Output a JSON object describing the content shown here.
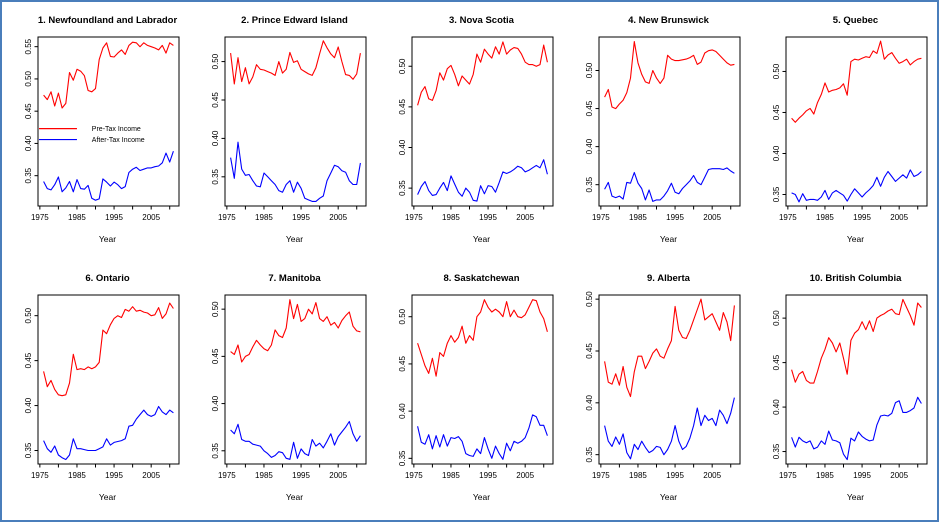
{
  "page": {
    "border_color": "#4a7ebb",
    "background_color": "#ffffff"
  },
  "x_axis": {
    "label": "Year",
    "years": [
      1976,
      1977,
      1978,
      1979,
      1980,
      1981,
      1982,
      1983,
      1984,
      1985,
      1986,
      1987,
      1988,
      1989,
      1990,
      1991,
      1992,
      1993,
      1994,
      1995,
      1996,
      1997,
      1998,
      1999,
      2000,
      2001,
      2002,
      2003,
      2004,
      2005,
      2006,
      2007,
      2008,
      2009,
      2010,
      2011
    ],
    "xlim": [
      1974.5,
      2012.5
    ],
    "ticks": [
      1975,
      1980,
      1985,
      1990,
      1995,
      2000,
      2005,
      2010
    ],
    "tick_labels": [
      1975,
      1985,
      1995,
      2005
    ]
  },
  "chart_data": [
    {
      "type": "line",
      "title": "1. Newfoundland and Labrador",
      "xlabel": "Year",
      "ylim": [
        0.303,
        0.565
      ],
      "y_ticks": [
        0.35,
        0.4,
        0.45,
        0.5,
        0.55
      ],
      "grid": false,
      "legend": {
        "entries": [
          {
            "label": "Pre-Tax Income",
            "color": "#ff0000",
            "y": 0.423
          },
          {
            "label": "After-Tax Income",
            "color": "#0000ff",
            "y": 0.406
          }
        ]
      },
      "series": [
        {
          "name": "Pre-Tax Income",
          "color": "#ff0000",
          "values": [
            0.475,
            0.468,
            0.48,
            0.458,
            0.478,
            0.455,
            0.462,
            0.51,
            0.498,
            0.515,
            0.512,
            0.505,
            0.482,
            0.48,
            0.485,
            0.53,
            0.548,
            0.556,
            0.535,
            0.534,
            0.54,
            0.545,
            0.538,
            0.552,
            0.557,
            0.556,
            0.55,
            0.556,
            0.552,
            0.55,
            0.548,
            0.545,
            0.552,
            0.54,
            0.556,
            0.552
          ]
        },
        {
          "name": "After-Tax Income",
          "color": "#0000ff",
          "values": [
            0.341,
            0.33,
            0.328,
            0.336,
            0.348,
            0.325,
            0.331,
            0.341,
            0.325,
            0.344,
            0.33,
            0.329,
            0.335,
            0.315,
            0.312,
            0.314,
            0.345,
            0.34,
            0.334,
            0.34,
            0.336,
            0.33,
            0.333,
            0.355,
            0.36,
            0.363,
            0.358,
            0.36,
            0.362,
            0.362,
            0.364,
            0.365,
            0.37,
            0.385,
            0.371,
            0.388
          ]
        }
      ]
    },
    {
      "type": "line",
      "title": "2. Prince Edward Island",
      "xlabel": "Year",
      "ylim": [
        0.312,
        0.532
      ],
      "y_ticks": [
        0.35,
        0.4,
        0.45,
        0.5
      ],
      "grid": false,
      "series": [
        {
          "name": "Pre-Tax Income",
          "color": "#ff0000",
          "values": [
            0.511,
            0.471,
            0.505,
            0.474,
            0.492,
            0.471,
            0.48,
            0.496,
            0.49,
            0.489,
            0.487,
            0.485,
            0.482,
            0.5,
            0.485,
            0.49,
            0.512,
            0.499,
            0.501,
            0.49,
            0.487,
            0.484,
            0.482,
            0.492,
            0.51,
            0.527,
            0.518,
            0.51,
            0.505,
            0.519,
            0.5,
            0.483,
            0.482,
            0.477,
            0.484,
            0.511
          ]
        },
        {
          "name": "After-Tax Income",
          "color": "#0000ff",
          "values": [
            0.375,
            0.348,
            0.395,
            0.36,
            0.352,
            0.353,
            0.345,
            0.338,
            0.337,
            0.355,
            0.35,
            0.345,
            0.34,
            0.332,
            0.33,
            0.34,
            0.345,
            0.33,
            0.343,
            0.335,
            0.322,
            0.32,
            0.318,
            0.318,
            0.322,
            0.325,
            0.345,
            0.355,
            0.365,
            0.363,
            0.358,
            0.356,
            0.345,
            0.34,
            0.34,
            0.368
          ]
        }
      ]
    },
    {
      "type": "line",
      "title": "3. Nova Scotia",
      "xlabel": "Year",
      "ylim": [
        0.328,
        0.536
      ],
      "y_ticks": [
        0.35,
        0.4,
        0.45,
        0.5
      ],
      "grid": false,
      "series": [
        {
          "name": "Pre-Tax Income",
          "color": "#ff0000",
          "values": [
            0.452,
            0.468,
            0.475,
            0.46,
            0.458,
            0.47,
            0.492,
            0.483,
            0.497,
            0.501,
            0.49,
            0.476,
            0.488,
            0.483,
            0.478,
            0.49,
            0.515,
            0.505,
            0.521,
            0.515,
            0.51,
            0.524,
            0.515,
            0.53,
            0.515,
            0.52,
            0.523,
            0.522,
            0.515,
            0.505,
            0.502,
            0.502,
            0.5,
            0.502,
            0.526,
            0.505
          ]
        },
        {
          "name": "After-Tax Income",
          "color": "#0000ff",
          "values": [
            0.342,
            0.352,
            0.358,
            0.347,
            0.341,
            0.342,
            0.35,
            0.357,
            0.347,
            0.365,
            0.355,
            0.345,
            0.34,
            0.35,
            0.345,
            0.335,
            0.334,
            0.353,
            0.343,
            0.353,
            0.352,
            0.345,
            0.357,
            0.37,
            0.368,
            0.37,
            0.373,
            0.377,
            0.375,
            0.37,
            0.372,
            0.375,
            0.378,
            0.375,
            0.385,
            0.367
          ]
        }
      ]
    },
    {
      "type": "line",
      "title": "4. New Brunswick",
      "xlabel": "Year",
      "ylim": [
        0.322,
        0.544
      ],
      "y_ticks": [
        0.35,
        0.4,
        0.45,
        0.5
      ],
      "grid": false,
      "series": [
        {
          "name": "Pre-Tax Income",
          "color": "#ff0000",
          "values": [
            0.465,
            0.475,
            0.452,
            0.45,
            0.456,
            0.461,
            0.471,
            0.49,
            0.538,
            0.51,
            0.495,
            0.485,
            0.483,
            0.5,
            0.49,
            0.483,
            0.49,
            0.52,
            0.515,
            0.513,
            0.513,
            0.514,
            0.515,
            0.517,
            0.52,
            0.508,
            0.511,
            0.523,
            0.526,
            0.527,
            0.525,
            0.52,
            0.515,
            0.51,
            0.507,
            0.508
          ]
        },
        {
          "name": "After-Tax Income",
          "color": "#0000ff",
          "values": [
            0.344,
            0.353,
            0.335,
            0.333,
            0.335,
            0.331,
            0.353,
            0.352,
            0.366,
            0.352,
            0.345,
            0.33,
            0.343,
            0.328,
            0.33,
            0.33,
            0.335,
            0.342,
            0.352,
            0.34,
            0.338,
            0.345,
            0.35,
            0.355,
            0.362,
            0.353,
            0.35,
            0.36,
            0.37,
            0.371,
            0.371,
            0.371,
            0.37,
            0.372,
            0.368,
            0.365
          ]
        }
      ]
    },
    {
      "type": "line",
      "title": "5. Quebec",
      "xlabel": "Year",
      "ylim": [
        0.336,
        0.542
      ],
      "y_ticks": [
        0.35,
        0.4,
        0.45,
        0.5
      ],
      "grid": false,
      "series": [
        {
          "name": "Pre-Tax Income",
          "color": "#ff0000",
          "values": [
            0.443,
            0.438,
            0.443,
            0.447,
            0.452,
            0.455,
            0.448,
            0.462,
            0.472,
            0.486,
            0.475,
            0.477,
            0.478,
            0.48,
            0.485,
            0.471,
            0.512,
            0.515,
            0.514,
            0.516,
            0.518,
            0.517,
            0.525,
            0.522,
            0.537,
            0.515,
            0.52,
            0.523,
            0.516,
            0.51,
            0.512,
            0.515,
            0.508,
            0.512,
            0.515,
            0.516
          ]
        },
        {
          "name": "After-Tax Income",
          "color": "#0000ff",
          "values": [
            0.352,
            0.35,
            0.341,
            0.351,
            0.343,
            0.344,
            0.344,
            0.343,
            0.347,
            0.355,
            0.344,
            0.352,
            0.355,
            0.352,
            0.349,
            0.342,
            0.35,
            0.357,
            0.352,
            0.347,
            0.352,
            0.356,
            0.361,
            0.371,
            0.36,
            0.371,
            0.378,
            0.372,
            0.366,
            0.37,
            0.374,
            0.37,
            0.38,
            0.372,
            0.374,
            0.378
          ]
        }
      ]
    },
    {
      "type": "line",
      "title": "6. Ontario",
      "xlabel": "Year",
      "ylim": [
        0.335,
        0.523
      ],
      "y_ticks": [
        0.35,
        0.4,
        0.45,
        0.5
      ],
      "grid": false,
      "series": [
        {
          "name": "Pre-Tax Income",
          "color": "#ff0000",
          "values": [
            0.438,
            0.421,
            0.428,
            0.418,
            0.412,
            0.411,
            0.412,
            0.425,
            0.457,
            0.44,
            0.441,
            0.44,
            0.443,
            0.441,
            0.443,
            0.448,
            0.484,
            0.48,
            0.49,
            0.497,
            0.5,
            0.498,
            0.507,
            0.505,
            0.51,
            0.505,
            0.506,
            0.504,
            0.503,
            0.5,
            0.501,
            0.509,
            0.497,
            0.502,
            0.514,
            0.508
          ]
        },
        {
          "name": "After-Tax Income",
          "color": "#0000ff",
          "values": [
            0.361,
            0.352,
            0.348,
            0.355,
            0.345,
            0.342,
            0.34,
            0.345,
            0.363,
            0.352,
            0.352,
            0.351,
            0.35,
            0.35,
            0.35,
            0.352,
            0.354,
            0.363,
            0.356,
            0.359,
            0.36,
            0.361,
            0.363,
            0.377,
            0.378,
            0.385,
            0.39,
            0.395,
            0.39,
            0.388,
            0.39,
            0.399,
            0.393,
            0.39,
            0.395,
            0.392
          ]
        }
      ]
    },
    {
      "type": "line",
      "title": "7. Manitoba",
      "xlabel": "Year",
      "ylim": [
        0.336,
        0.515
      ],
      "y_ticks": [
        0.35,
        0.4,
        0.45,
        0.5
      ],
      "grid": false,
      "series": [
        {
          "name": "Pre-Tax Income",
          "color": "#ff0000",
          "values": [
            0.455,
            0.452,
            0.462,
            0.444,
            0.45,
            0.452,
            0.46,
            0.467,
            0.462,
            0.458,
            0.456,
            0.462,
            0.478,
            0.472,
            0.47,
            0.48,
            0.51,
            0.49,
            0.505,
            0.487,
            0.49,
            0.5,
            0.495,
            0.507,
            0.49,
            0.487,
            0.492,
            0.483,
            0.486,
            0.48,
            0.488,
            0.493,
            0.497,
            0.482,
            0.477,
            0.476
          ]
        },
        {
          "name": "After-Tax Income",
          "color": "#0000ff",
          "values": [
            0.372,
            0.368,
            0.378,
            0.362,
            0.36,
            0.36,
            0.357,
            0.356,
            0.355,
            0.35,
            0.347,
            0.343,
            0.345,
            0.349,
            0.348,
            0.342,
            0.341,
            0.359,
            0.342,
            0.352,
            0.347,
            0.345,
            0.362,
            0.355,
            0.358,
            0.353,
            0.36,
            0.368,
            0.356,
            0.365,
            0.37,
            0.375,
            0.381,
            0.368,
            0.36,
            0.366
          ]
        }
      ]
    },
    {
      "type": "line",
      "title": "8. Saskatchewan",
      "xlabel": "Year",
      "ylim": [
        0.344,
        0.523
      ],
      "y_ticks": [
        0.35,
        0.4,
        0.45,
        0.5
      ],
      "grid": false,
      "series": [
        {
          "name": "Pre-Tax Income",
          "color": "#ff0000",
          "values": [
            0.472,
            0.46,
            0.448,
            0.44,
            0.456,
            0.437,
            0.462,
            0.458,
            0.472,
            0.48,
            0.473,
            0.478,
            0.49,
            0.472,
            0.48,
            0.475,
            0.5,
            0.505,
            0.518,
            0.51,
            0.505,
            0.508,
            0.505,
            0.5,
            0.516,
            0.5,
            0.507,
            0.5,
            0.499,
            0.502,
            0.51,
            0.518,
            0.517,
            0.505,
            0.498,
            0.484
          ]
        },
        {
          "name": "After-Tax Income",
          "color": "#0000ff",
          "values": [
            0.384,
            0.367,
            0.365,
            0.375,
            0.36,
            0.374,
            0.362,
            0.375,
            0.363,
            0.372,
            0.371,
            0.373,
            0.368,
            0.355,
            0.353,
            0.352,
            0.36,
            0.355,
            0.372,
            0.36,
            0.35,
            0.363,
            0.355,
            0.349,
            0.366,
            0.358,
            0.368,
            0.366,
            0.368,
            0.372,
            0.382,
            0.396,
            0.394,
            0.385,
            0.385,
            0.374
          ]
        }
      ]
    },
    {
      "type": "line",
      "title": "9. Alberta",
      "xlabel": "Year",
      "ylim": [
        0.341,
        0.504
      ],
      "y_ticks": [
        0.35,
        0.4,
        0.45,
        0.5
      ],
      "grid": false,
      "series": [
        {
          "name": "Pre-Tax Income",
          "color": "#ff0000",
          "values": [
            0.44,
            0.42,
            0.418,
            0.428,
            0.417,
            0.435,
            0.415,
            0.406,
            0.43,
            0.445,
            0.445,
            0.433,
            0.44,
            0.448,
            0.452,
            0.445,
            0.443,
            0.452,
            0.46,
            0.493,
            0.47,
            0.463,
            0.462,
            0.47,
            0.48,
            0.49,
            0.5,
            0.48,
            0.483,
            0.486,
            0.478,
            0.47,
            0.487,
            0.478,
            0.46,
            0.494
          ]
        },
        {
          "name": "After-Tax Income",
          "color": "#0000ff",
          "values": [
            0.378,
            0.363,
            0.358,
            0.367,
            0.36,
            0.37,
            0.352,
            0.346,
            0.36,
            0.355,
            0.363,
            0.357,
            0.352,
            0.354,
            0.358,
            0.357,
            0.35,
            0.355,
            0.363,
            0.378,
            0.363,
            0.355,
            0.358,
            0.366,
            0.378,
            0.395,
            0.378,
            0.388,
            0.383,
            0.385,
            0.378,
            0.393,
            0.388,
            0.38,
            0.39,
            0.405
          ]
        }
      ]
    },
    {
      "type": "line",
      "title": "10. British Columbia",
      "xlabel": "Year",
      "ylim": [
        0.336,
        0.526
      ],
      "y_ticks": [
        0.35,
        0.4,
        0.45,
        0.5
      ],
      "grid": false,
      "series": [
        {
          "name": "Pre-Tax Income",
          "color": "#ff0000",
          "values": [
            0.442,
            0.428,
            0.437,
            0.44,
            0.43,
            0.427,
            0.427,
            0.44,
            0.455,
            0.465,
            0.478,
            0.472,
            0.462,
            0.472,
            0.455,
            0.437,
            0.475,
            0.483,
            0.487,
            0.496,
            0.487,
            0.497,
            0.485,
            0.5,
            0.503,
            0.505,
            0.508,
            0.51,
            0.505,
            0.504,
            0.521,
            0.512,
            0.503,
            0.492,
            0.517,
            0.512
          ]
        },
        {
          "name": "After-Tax Income",
          "color": "#0000ff",
          "values": [
            0.366,
            0.355,
            0.366,
            0.362,
            0.36,
            0.362,
            0.353,
            0.355,
            0.362,
            0.358,
            0.373,
            0.363,
            0.362,
            0.36,
            0.347,
            0.341,
            0.365,
            0.362,
            0.372,
            0.367,
            0.364,
            0.362,
            0.363,
            0.38,
            0.39,
            0.391,
            0.39,
            0.393,
            0.405,
            0.407,
            0.394,
            0.394,
            0.396,
            0.399,
            0.411,
            0.404
          ]
        }
      ]
    }
  ]
}
